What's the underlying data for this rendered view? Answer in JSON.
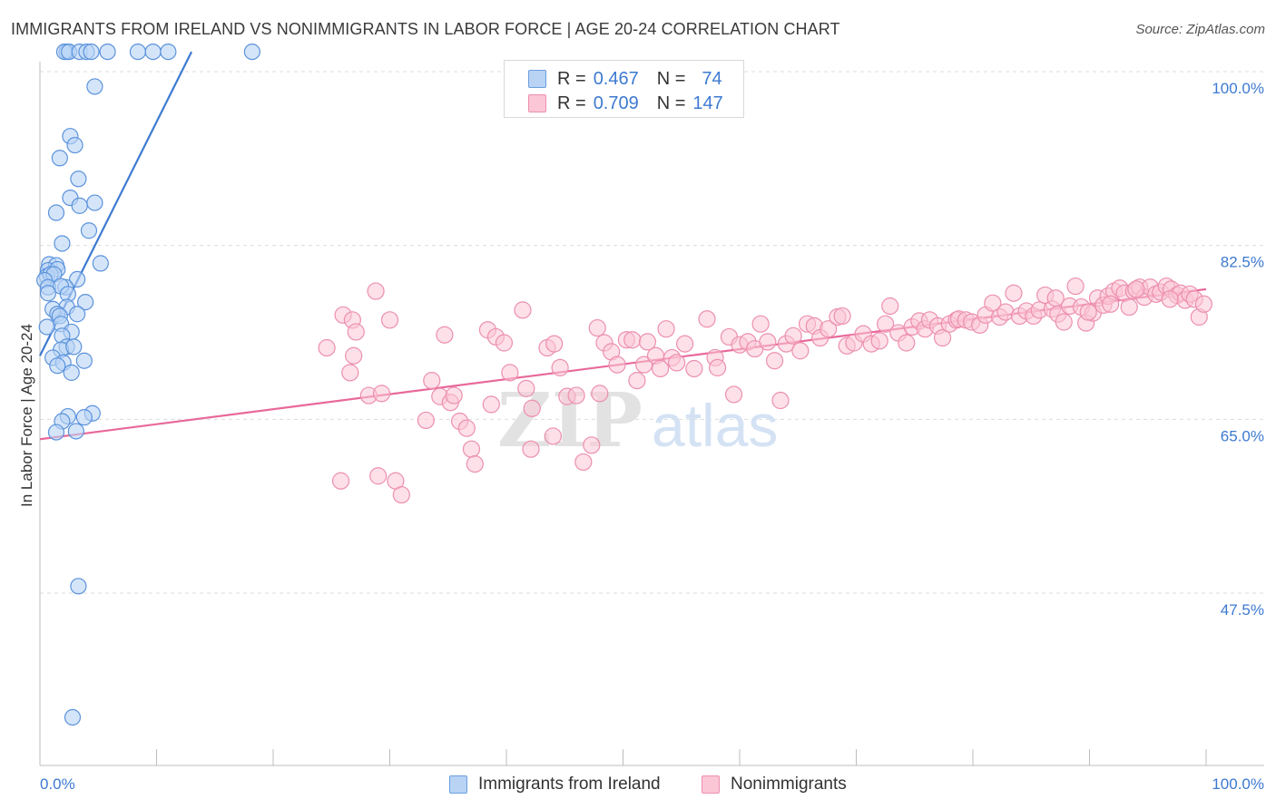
{
  "title": "IMMIGRANTS FROM IRELAND VS NONIMMIGRANTS IN LABOR FORCE | AGE 20-24 CORRELATION CHART",
  "source": "Source: ZipAtlas.com",
  "watermark": {
    "zip": "ZIP",
    "atlas": "atlas"
  },
  "legend": {
    "rows": [
      {
        "r_label": "R =",
        "r_value": "0.467",
        "n_label": "N =",
        "n_value": "74"
      },
      {
        "r_label": "R =",
        "r_value": "0.709",
        "n_label": "N =",
        "n_value": "147"
      }
    ]
  },
  "bottom_legend": {
    "series1": "Immigrants from Ireland",
    "series2": "Nonimmigrants"
  },
  "colors": {
    "blue": "#3d7ad1",
    "blue_fill": "#b9d3f5",
    "pink": "#e8699a",
    "pink_fill": "#fbc6d6",
    "tick_text": "#3d7ad1"
  },
  "chart_data": {
    "type": "scatter",
    "title": "IMMIGRANTS FROM IRELAND VS NONIMMIGRANTS IN LABOR FORCE | AGE 20-24 CORRELATION CHART",
    "xlabel": "",
    "ylabel": "In Labor Force | Age 20-24",
    "xlim": [
      0,
      100
    ],
    "ylim": [
      32.5,
      102
    ],
    "x_tick_labels": [
      "0.0%",
      "100.0%"
    ],
    "y_ticks": [
      47.5,
      65.0,
      82.5,
      100.0
    ],
    "y_tick_labels": [
      "47.5%",
      "65.0%",
      "82.5%",
      "100.0%"
    ],
    "grid": true,
    "legend_position": "top-center",
    "series": [
      {
        "name": "Immigrants from Ireland",
        "R": 0.467,
        "N": 74,
        "trend": {
          "x0": 0.0,
          "y0": 71.4,
          "x1": 13.0,
          "y1": 102.0
        },
        "points": [
          [
            2.3,
            102
          ],
          [
            2.1,
            102
          ],
          [
            2.5,
            102
          ],
          [
            3.4,
            102
          ],
          [
            4.0,
            102
          ],
          [
            4.4,
            102
          ],
          [
            5.8,
            102
          ],
          [
            8.4,
            102
          ],
          [
            9.7,
            102
          ],
          [
            11.0,
            102
          ],
          [
            18.2,
            102
          ],
          [
            4.7,
            98.5
          ],
          [
            2.6,
            93.5
          ],
          [
            3.0,
            92.6
          ],
          [
            1.7,
            91.3
          ],
          [
            3.3,
            89.2
          ],
          [
            2.6,
            87.3
          ],
          [
            4.7,
            86.8
          ],
          [
            3.4,
            86.5
          ],
          [
            1.4,
            85.8
          ],
          [
            4.2,
            84.0
          ],
          [
            1.9,
            82.7
          ],
          [
            0.8,
            80.6
          ],
          [
            1.4,
            80.5
          ],
          [
            5.2,
            80.7
          ],
          [
            0.7,
            80.0
          ],
          [
            1.5,
            80.1
          ],
          [
            0.6,
            79.4
          ],
          [
            0.9,
            79.6
          ],
          [
            1.2,
            79.6
          ],
          [
            0.4,
            79.0
          ],
          [
            3.2,
            79.1
          ],
          [
            0.7,
            78.3
          ],
          [
            2.2,
            78.3
          ],
          [
            1.8,
            78.4
          ],
          [
            0.7,
            77.7
          ],
          [
            2.4,
            77.6
          ],
          [
            3.9,
            76.8
          ],
          [
            1.1,
            76.1
          ],
          [
            2.3,
            76.3
          ],
          [
            1.5,
            75.6
          ],
          [
            3.2,
            75.6
          ],
          [
            1.7,
            75.4
          ],
          [
            1.8,
            74.6
          ],
          [
            0.6,
            74.3
          ],
          [
            2.7,
            73.8
          ],
          [
            1.9,
            73.4
          ],
          [
            2.3,
            72.3
          ],
          [
            1.8,
            72.0
          ],
          [
            2.9,
            72.3
          ],
          [
            1.1,
            71.2
          ],
          [
            2.0,
            70.7
          ],
          [
            3.8,
            70.9
          ],
          [
            1.5,
            70.4
          ],
          [
            2.7,
            69.7
          ],
          [
            4.5,
            65.6
          ],
          [
            2.4,
            65.3
          ],
          [
            3.8,
            65.2
          ],
          [
            1.9,
            64.8
          ],
          [
            1.4,
            63.7
          ],
          [
            3.1,
            63.8
          ],
          [
            3.3,
            48.2
          ],
          [
            2.8,
            35.0
          ]
        ]
      },
      {
        "name": "Nonimmigrants",
        "R": 0.709,
        "N": 147,
        "trend": {
          "x0": 0.0,
          "y0": 63.0,
          "x1": 100.0,
          "y1": 78.1
        },
        "points": [
          [
            24.6,
            72.2
          ],
          [
            25.8,
            58.8
          ],
          [
            26.0,
            75.5
          ],
          [
            26.6,
            69.7
          ],
          [
            26.8,
            75.0
          ],
          [
            26.9,
            71.4
          ],
          [
            27.1,
            73.8
          ],
          [
            28.2,
            67.4
          ],
          [
            28.8,
            77.9
          ],
          [
            29.0,
            59.3
          ],
          [
            29.3,
            67.6
          ],
          [
            30.0,
            75.0
          ],
          [
            30.5,
            58.8
          ],
          [
            31.0,
            57.4
          ],
          [
            33.1,
            64.9
          ],
          [
            33.6,
            68.9
          ],
          [
            34.3,
            67.3
          ],
          [
            34.7,
            73.5
          ],
          [
            35.2,
            66.7
          ],
          [
            35.5,
            67.4
          ],
          [
            36.0,
            64.8
          ],
          [
            36.6,
            64.1
          ],
          [
            37.0,
            62.0
          ],
          [
            37.3,
            60.5
          ],
          [
            38.4,
            74.0
          ],
          [
            38.7,
            66.5
          ],
          [
            39.1,
            73.3
          ],
          [
            39.8,
            72.7
          ],
          [
            40.3,
            69.7
          ],
          [
            41.4,
            76.0
          ],
          [
            41.7,
            68.1
          ],
          [
            42.1,
            62.0
          ],
          [
            42.2,
            66.1
          ],
          [
            43.5,
            72.2
          ],
          [
            44.1,
            72.6
          ],
          [
            44.0,
            63.3
          ],
          [
            44.6,
            70.2
          ],
          [
            45.2,
            67.3
          ],
          [
            46.0,
            67.4
          ],
          [
            46.6,
            60.7
          ],
          [
            47.3,
            62.4
          ],
          [
            47.8,
            74.2
          ],
          [
            48.0,
            67.6
          ],
          [
            48.4,
            72.7
          ],
          [
            49.0,
            71.8
          ],
          [
            49.5,
            70.5
          ],
          [
            50.3,
            73.0
          ],
          [
            50.8,
            73.0
          ],
          [
            51.2,
            68.9
          ],
          [
            51.8,
            70.5
          ],
          [
            52.1,
            72.8
          ],
          [
            52.8,
            71.4
          ],
          [
            53.2,
            70.1
          ],
          [
            53.7,
            74.1
          ],
          [
            54.2,
            71.2
          ],
          [
            54.6,
            70.7
          ],
          [
            55.3,
            72.6
          ],
          [
            56.1,
            70.1
          ],
          [
            57.2,
            75.1
          ],
          [
            57.9,
            71.2
          ],
          [
            58.1,
            70.2
          ],
          [
            59.1,
            73.3
          ],
          [
            59.5,
            67.5
          ],
          [
            60.0,
            72.5
          ],
          [
            60.7,
            72.8
          ],
          [
            61.3,
            72.1
          ],
          [
            61.8,
            74.6
          ],
          [
            62.4,
            72.8
          ],
          [
            63.0,
            70.9
          ],
          [
            63.5,
            66.9
          ],
          [
            64.0,
            72.6
          ],
          [
            64.6,
            73.4
          ],
          [
            65.2,
            71.9
          ],
          [
            65.8,
            74.6
          ],
          [
            66.4,
            74.4
          ],
          [
            66.9,
            73.2
          ],
          [
            67.6,
            74.1
          ],
          [
            68.4,
            75.3
          ],
          [
            68.8,
            75.4
          ],
          [
            69.2,
            72.4
          ],
          [
            69.8,
            72.7
          ],
          [
            70.6,
            73.6
          ],
          [
            71.3,
            72.6
          ],
          [
            72.0,
            72.9
          ],
          [
            72.5,
            74.6
          ],
          [
            72.9,
            76.4
          ],
          [
            73.6,
            73.7
          ],
          [
            74.3,
            72.7
          ],
          [
            74.8,
            74.3
          ],
          [
            75.4,
            74.9
          ],
          [
            75.9,
            74.1
          ],
          [
            76.3,
            75.0
          ],
          [
            77.0,
            74.4
          ],
          [
            77.4,
            73.2
          ],
          [
            78.0,
            74.6
          ],
          [
            78.6,
            75.0
          ],
          [
            78.8,
            75.1
          ],
          [
            79.4,
            75.0
          ],
          [
            79.9,
            74.8
          ],
          [
            80.6,
            74.5
          ],
          [
            81.1,
            75.5
          ],
          [
            81.7,
            76.7
          ],
          [
            82.3,
            75.3
          ],
          [
            82.8,
            75.8
          ],
          [
            83.5,
            77.7
          ],
          [
            84.0,
            75.4
          ],
          [
            84.6,
            75.9
          ],
          [
            85.2,
            75.4
          ],
          [
            85.7,
            76.0
          ],
          [
            86.2,
            77.5
          ],
          [
            86.8,
            76.1
          ],
          [
            87.3,
            75.6
          ],
          [
            87.8,
            74.8
          ],
          [
            88.3,
            76.4
          ],
          [
            88.8,
            78.4
          ],
          [
            89.3,
            76.3
          ],
          [
            89.7,
            74.7
          ],
          [
            90.3,
            75.7
          ],
          [
            90.7,
            77.2
          ],
          [
            91.2,
            76.5
          ],
          [
            91.6,
            77.4
          ],
          [
            92.1,
            77.9
          ],
          [
            92.6,
            78.2
          ],
          [
            93.0,
            77.7
          ],
          [
            93.4,
            76.3
          ],
          [
            93.8,
            77.9
          ],
          [
            94.3,
            78.3
          ],
          [
            94.7,
            77.3
          ],
          [
            95.2,
            78.3
          ],
          [
            95.7,
            77.6
          ],
          [
            96.1,
            77.8
          ],
          [
            96.6,
            78.4
          ],
          [
            97.0,
            78.1
          ],
          [
            97.5,
            77.5
          ],
          [
            97.8,
            77.7
          ],
          [
            98.2,
            77.0
          ],
          [
            98.6,
            77.6
          ],
          [
            99.0,
            77.1
          ],
          [
            99.4,
            75.3
          ],
          [
            99.8,
            76.6
          ],
          [
            96.9,
            77.1
          ],
          [
            94.0,
            78.1
          ],
          [
            91.8,
            76.6
          ],
          [
            89.9,
            75.8
          ],
          [
            87.1,
            77.2
          ]
        ]
      }
    ]
  }
}
